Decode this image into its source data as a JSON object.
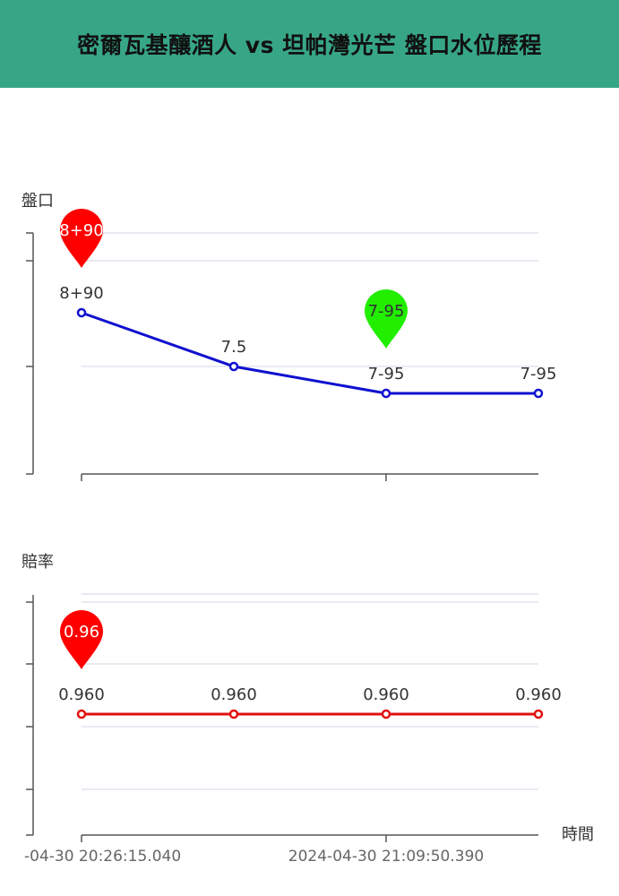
{
  "header": {
    "title": "密爾瓦基釀酒人 vs 坦帕灣光芒 盤口水位歷程",
    "bg_color": "#37a687"
  },
  "colors": {
    "handicap_line": "#1010d0",
    "odds_line": "#e01010",
    "pin_start": "#ff0000",
    "pin_current": "#22ee00",
    "grid": "#e2e4ee",
    "axis": "#555555"
  },
  "chart_data": [
    {
      "type": "line",
      "ylabel": "盤口",
      "x": [
        "2024-04-30 20:26:15.040",
        "",
        "2024-04-30 21:09:50.390",
        ""
      ],
      "series": [
        {
          "values": [
            8.9,
            7.5,
            7.05,
            7.05
          ],
          "labels": [
            "8+90",
            "7.5",
            "7-95",
            "7-95"
          ]
        }
      ],
      "markers": [
        {
          "index": 0,
          "text": "8+90",
          "color": "#ff0000"
        },
        {
          "index": 2,
          "text": "7-95",
          "color": "#22ee00"
        }
      ],
      "ylim": [
        6.0,
        10.0
      ],
      "grid": true
    },
    {
      "type": "line",
      "ylabel": "賠率",
      "xlabel": "時間",
      "x": [
        "2024-04-30 20:26:15.040",
        "",
        "2024-04-30 21:09:50.390",
        ""
      ],
      "x_tick_labels": [
        "-04-30 20:26:15.040",
        "2024-04-30 21:09:50.390"
      ],
      "series": [
        {
          "values": [
            0.96,
            0.96,
            0.96,
            0.96
          ],
          "labels": [
            "0.960",
            "0.960",
            "0.960",
            "0.960"
          ]
        }
      ],
      "markers": [
        {
          "index": 0,
          "text": "0.96",
          "color": "#ff0000"
        }
      ],
      "grid": true
    }
  ]
}
